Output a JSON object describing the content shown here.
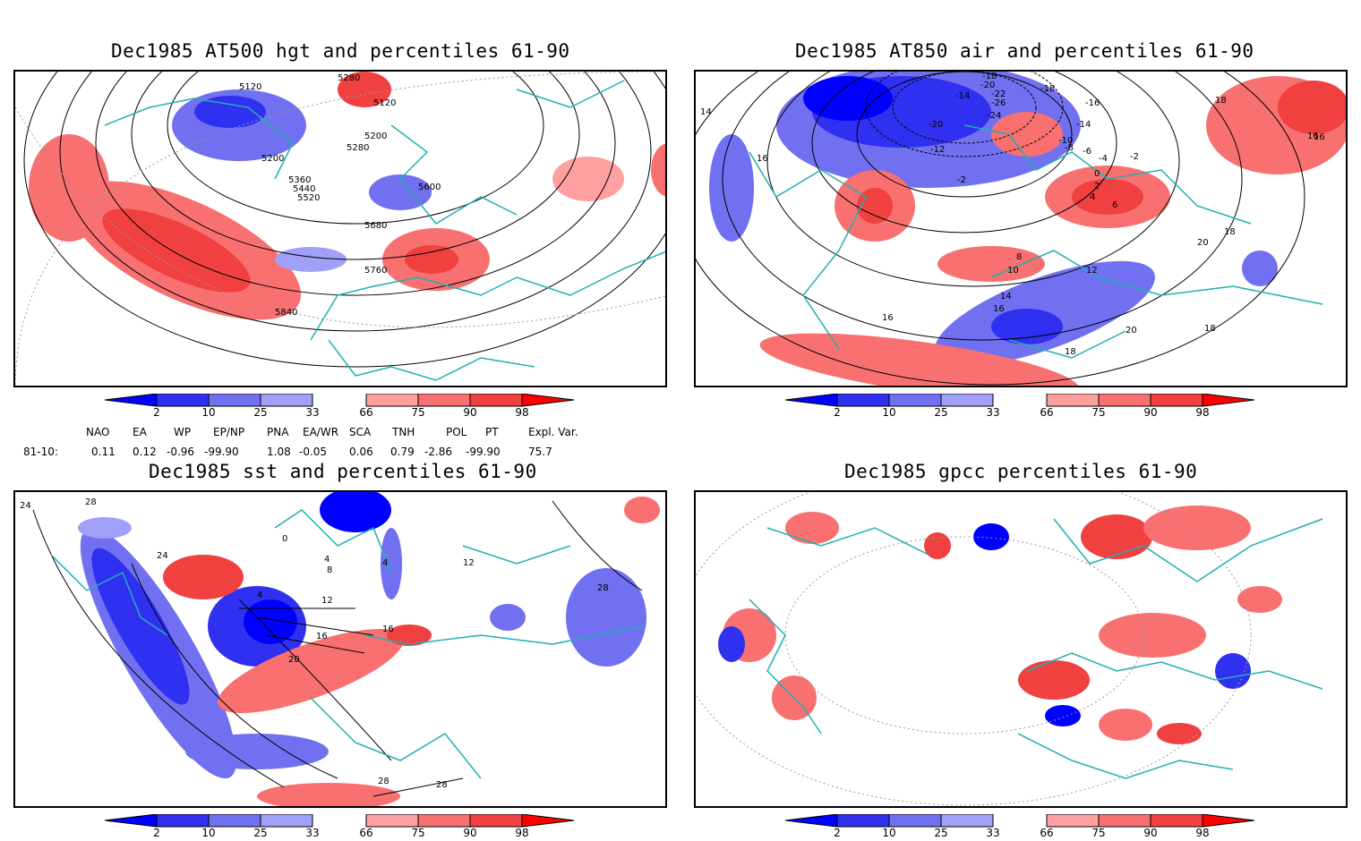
{
  "panels": [
    {
      "title": "Dec1985 AT500 hgt and percentiles 61-90",
      "contour_labels": [
        "5120",
        "5280",
        "5120",
        "5200",
        "5280",
        "5200",
        "5360",
        "5440",
        "5520",
        "5600",
        "5680",
        "5760",
        "5840"
      ]
    },
    {
      "title": "Dec1985 AT850 air and percentiles 61-90",
      "contour_labels": [
        "-18",
        "-20",
        "-22",
        "-18",
        "-14",
        "-26",
        "-24",
        "-16",
        "-20",
        "-14",
        "-10",
        "-8",
        "-6",
        "-12",
        "-4",
        "-2",
        "0",
        "2",
        "4",
        "6",
        "-2",
        "16",
        "14",
        "16",
        "8",
        "10",
        "12",
        "14",
        "16",
        "16",
        "20",
        "18",
        "18",
        "18",
        "20",
        "18",
        "16"
      ]
    },
    {
      "title": "Dec1985 sst and percentiles 61-90",
      "contour_labels": [
        "24",
        "28",
        "24",
        "0",
        "4",
        "4",
        "8",
        "12",
        "4",
        "16",
        "16",
        "20",
        "28",
        "28",
        "28",
        "12"
      ]
    },
    {
      "title": "Dec1985 gpcc percentiles 61-90",
      "contour_labels": []
    }
  ],
  "colorbar": {
    "ticks": [
      "2",
      "10",
      "25",
      "33",
      "66",
      "75",
      "90",
      "98"
    ],
    "colors": {
      "blue_dark": "#0000ff",
      "blue_mid": "#3030f0",
      "blue_light": "#7070f0",
      "blue_pale": "#a0a0f8",
      "red_pale": "#ffa0a0",
      "red_light": "#f87070",
      "red_mid": "#f04040",
      "red_dark": "#ff0000",
      "land_outline": "#20b0b0"
    }
  },
  "indices": {
    "headers": [
      "NAO",
      "EA",
      "WP",
      "EP/NP",
      "PNA",
      "EA/WR",
      "SCA",
      "TNH",
      "POL",
      "PT",
      "Expl. Var."
    ],
    "row_label": "81-10:",
    "values": [
      "0.11",
      "0.12",
      "-0.96",
      "-99.90",
      "1.08",
      "-0.05",
      "0.06",
      "0.79",
      "-2.86",
      "-99.90",
      "75.7"
    ]
  }
}
